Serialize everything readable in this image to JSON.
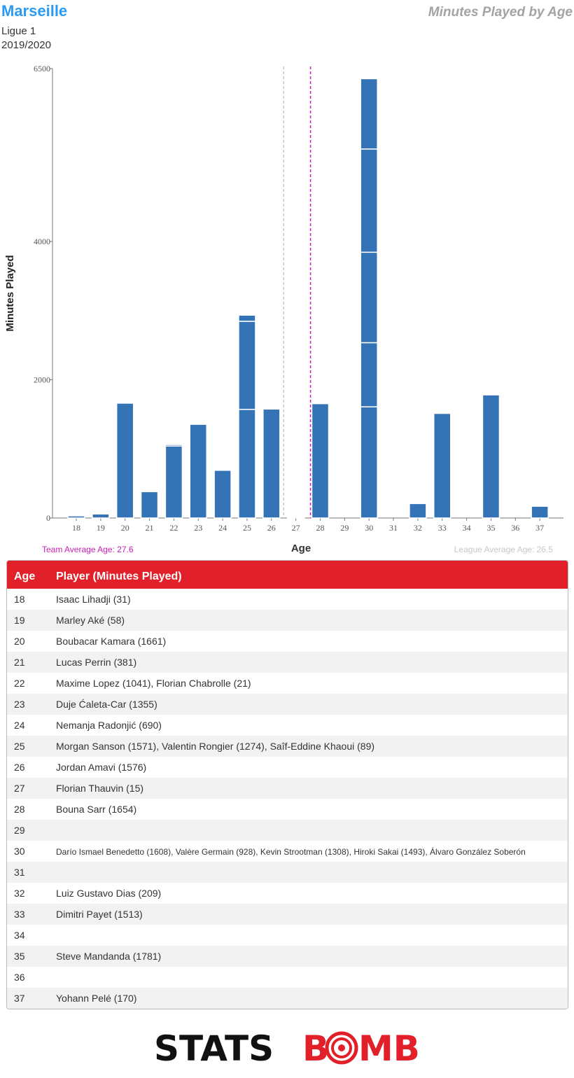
{
  "header": {
    "team": "Marseille",
    "league": "Ligue 1",
    "season": "2019/2020",
    "title": "Minutes Played by Age"
  },
  "colors": {
    "bar": "#3473b5",
    "team_avg": "#c81fb5",
    "league_avg": "#c0c0c0",
    "header_red": "#e2202a",
    "team_blue": "#2b9af3"
  },
  "chart_data": {
    "type": "bar",
    "stacked": true,
    "title": "Minutes Played by Age",
    "xlabel": "Age",
    "ylabel": "Minutes Played",
    "ylim": [
      0,
      6500
    ],
    "yticks": [
      0,
      2000,
      4000,
      6500
    ],
    "categories": [
      18,
      19,
      20,
      21,
      22,
      23,
      24,
      25,
      26,
      27,
      28,
      29,
      30,
      31,
      32,
      33,
      34,
      35,
      36,
      37
    ],
    "stacks": [
      [
        31
      ],
      [
        58
      ],
      [
        1661
      ],
      [
        381
      ],
      [
        1041,
        21
      ],
      [
        1355
      ],
      [
        690
      ],
      [
        1571,
        1274,
        89
      ],
      [
        1576
      ],
      [
        15
      ],
      [
        1654
      ],
      [],
      [
        1608,
        928,
        1308,
        1493,
        1017
      ],
      [],
      [
        209
      ],
      [
        1513
      ],
      [],
      [
        1781
      ],
      [],
      [
        170
      ]
    ],
    "team_average_age": 27.6,
    "league_average_age": 26.5,
    "grid": false
  },
  "labels": {
    "team_avg": "Team Average Age: 27.6",
    "league_avg": "League Average Age: 26.5"
  },
  "table": {
    "col_age": "Age",
    "col_players": "Player (Minutes Played)",
    "rows": [
      {
        "age": "18",
        "players": "Isaac Lihadji (31)"
      },
      {
        "age": "19",
        "players": "Marley Aké (58)"
      },
      {
        "age": "20",
        "players": "Boubacar Kamara (1661)"
      },
      {
        "age": "21",
        "players": "Lucas Perrin (381)"
      },
      {
        "age": "22",
        "players": "Maxime Lopez (1041), Florian Chabrolle (21)"
      },
      {
        "age": "23",
        "players": "Duje Ćaleta-Car (1355)"
      },
      {
        "age": "24",
        "players": "Nemanja Radonjić (690)"
      },
      {
        "age": "25",
        "players": "Morgan Sanson (1571), Valentin Rongier (1274), Saîf-Eddine Khaoui (89)"
      },
      {
        "age": "26",
        "players": "Jordan Amavi (1576)"
      },
      {
        "age": "27",
        "players": "Florian Thauvin (15)"
      },
      {
        "age": "28",
        "players": "Bouna Sarr (1654)"
      },
      {
        "age": "29",
        "players": ""
      },
      {
        "age": "30",
        "players": "Darío Ismael Benedetto (1608), Valère Germain (928), Kevin Strootman (1308), Hiroki Sakai (1493), Álvaro González Soberón",
        "small": true
      },
      {
        "age": "31",
        "players": ""
      },
      {
        "age": "32",
        "players": "Luiz Gustavo Dias (209)"
      },
      {
        "age": "33",
        "players": "Dimitri Payet (1513)"
      },
      {
        "age": "34",
        "players": ""
      },
      {
        "age": "35",
        "players": "Steve Mandanda (1781)"
      },
      {
        "age": "36",
        "players": ""
      },
      {
        "age": "37",
        "players": "Yohann Pelé (170)"
      }
    ]
  },
  "logo": {
    "part1": "STATS",
    "part2": "B",
    "part3": "MB"
  }
}
